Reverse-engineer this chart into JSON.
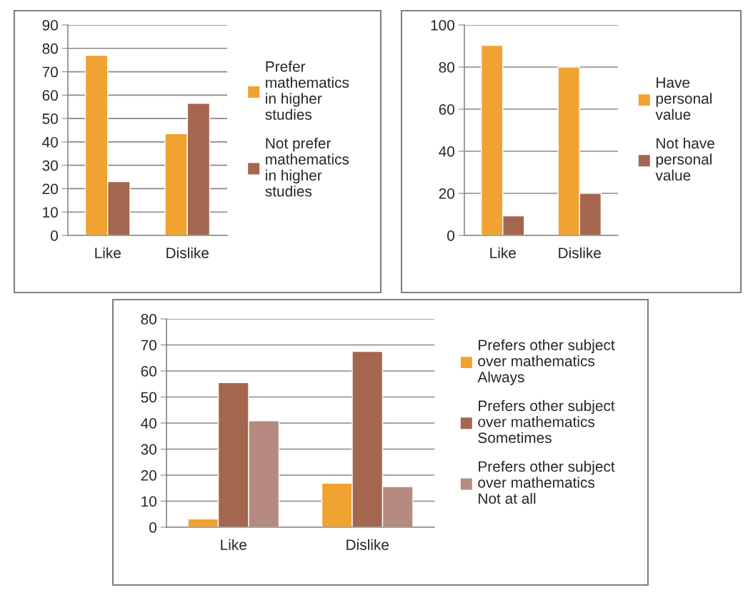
{
  "chart_data": [
    {
      "type": "bar",
      "categories": [
        "Like",
        "Dislike"
      ],
      "ylim": [
        0,
        90
      ],
      "yticks": [
        0,
        10,
        20,
        30,
        40,
        50,
        60,
        70,
        80,
        90
      ],
      "grid": "y",
      "legend": "right",
      "series": [
        {
          "name": "Prefer\nmathematics\nin higher\nstudies",
          "color": "#f0a330",
          "values": [
            77,
            43.5
          ]
        },
        {
          "name": "Not prefer\nmathematics\nin higher\nstudies",
          "color": "#a5664f",
          "values": [
            23,
            56.5
          ]
        }
      ]
    },
    {
      "type": "bar",
      "categories": [
        "Like",
        "Dislike"
      ],
      "ylim": [
        0,
        100
      ],
      "yticks": [
        0,
        20,
        40,
        60,
        80,
        100
      ],
      "grid": "y",
      "legend": "right",
      "series": [
        {
          "name": "Have\npersonal\nvalue",
          "color": "#f0a330",
          "values": [
            90.3,
            80
          ]
        },
        {
          "name": "Not have\npersonal\nvalue",
          "color": "#a5664f",
          "values": [
            9.3,
            20
          ]
        }
      ]
    },
    {
      "type": "bar",
      "categories": [
        "Like",
        "Dislike"
      ],
      "ylim": [
        0,
        80
      ],
      "yticks": [
        0,
        10,
        20,
        30,
        40,
        50,
        60,
        70,
        80
      ],
      "grid": "y",
      "legend": "right",
      "series": [
        {
          "name": "Prefers other subject\nover mathematics\nAlways",
          "color": "#f0a330",
          "values": [
            3.2,
            16.9
          ]
        },
        {
          "name": "Prefers other subject\nover mathematics\nSometimes",
          "color": "#a5664f",
          "values": [
            55.5,
            67.5
          ]
        },
        {
          "name": "Prefers other subject\nover mathematics\nNot at all",
          "color": "#b48b7e",
          "values": [
            40.9,
            15.6
          ]
        }
      ]
    }
  ]
}
